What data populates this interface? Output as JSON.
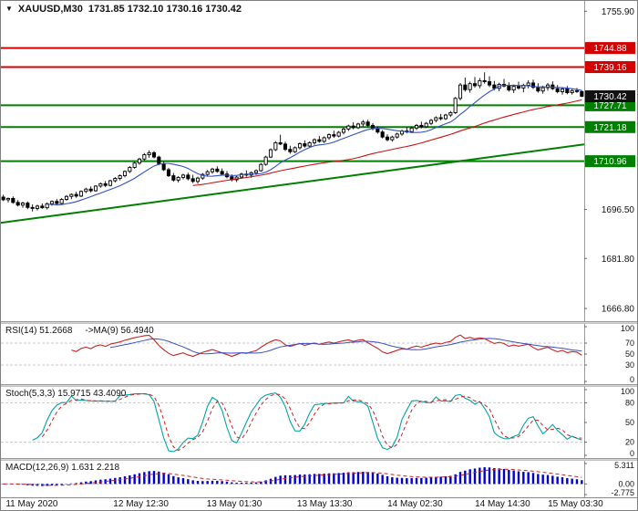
{
  "header": {
    "dropdown_icon": "▼",
    "symbol": "XAUUSD,M30",
    "ohlc": "1731.85 1732.10 1730.16 1730.42"
  },
  "chart_data": [
    {
      "type": "candlestick",
      "panel": "main",
      "symbol": "XAUUSD",
      "timeframe": "M30",
      "y_range": [
        1663,
        1759
      ],
      "y_ticks": [
        "1755.90",
        "1696.50",
        "1681.80",
        "1666.80"
      ],
      "levels": [
        {
          "price": 1744.88,
          "label": "1744.88",
          "color": "#d40000",
          "line": true,
          "role": "resistance-line"
        },
        {
          "price": 1739.16,
          "label": "1739.16",
          "color": "#d40000",
          "line": true,
          "role": "resistance-line"
        },
        {
          "price": 1727.71,
          "label": "1727.71",
          "color": "#008000",
          "line": true,
          "role": "support-line"
        },
        {
          "price": 1721.18,
          "label": "1721.18",
          "color": "#008000",
          "line": true,
          "role": "support-line"
        },
        {
          "price": 1710.96,
          "label": "1710.96",
          "color": "#008000",
          "line": true,
          "role": "support-line"
        },
        {
          "price": 1730.42,
          "label": "1730.42",
          "color": "#111111",
          "line": false,
          "role": "current-price"
        }
      ],
      "trendline": {
        "from_price": 1692.5,
        "to_price": 1716.0,
        "color": "#008000"
      },
      "ma_periods": {
        "fast": 10,
        "slow": 40
      },
      "ma_colors": {
        "fast": "#3050c8",
        "slow": "#cc1111"
      },
      "x_labels": [
        {
          "text": "11 May 2020",
          "pos": 0.053
        },
        {
          "text": "12 May 12:30",
          "pos": 0.24
        },
        {
          "text": "13 May 01:30",
          "pos": 0.4
        },
        {
          "text": "13 May 13:30",
          "pos": 0.555
        },
        {
          "text": "14 May 02:30",
          "pos": 0.71
        },
        {
          "text": "14 May 14:30",
          "pos": 0.86
        },
        {
          "text": "15 May 03:30",
          "pos": 0.985
        }
      ],
      "candles": [
        [
          1700.2,
          1700.9,
          1699.0,
          1699.4
        ],
        [
          1699.4,
          1700.1,
          1698.6,
          1699.8
        ],
        [
          1699.8,
          1700.4,
          1698.2,
          1698.6
        ],
        [
          1698.6,
          1699.3,
          1697.4,
          1697.8
        ],
        [
          1697.8,
          1698.8,
          1697.0,
          1698.4
        ],
        [
          1698.4,
          1698.9,
          1696.6,
          1697.1
        ],
        [
          1697.1,
          1698.0,
          1695.9,
          1696.8
        ],
        [
          1696.8,
          1697.9,
          1696.2,
          1697.5
        ],
        [
          1697.5,
          1698.3,
          1696.7,
          1697.0
        ],
        [
          1697.0,
          1698.6,
          1696.5,
          1698.2
        ],
        [
          1698.2,
          1699.2,
          1697.6,
          1698.9
        ],
        [
          1698.9,
          1699.6,
          1697.8,
          1698.3
        ],
        [
          1698.3,
          1699.9,
          1698.0,
          1699.5
        ],
        [
          1699.5,
          1700.8,
          1699.1,
          1700.4
        ],
        [
          1700.4,
          1701.3,
          1699.6,
          1701.0
        ],
        [
          1701.0,
          1701.8,
          1700.0,
          1700.5
        ],
        [
          1700.5,
          1702.2,
          1700.2,
          1701.9
        ],
        [
          1701.9,
          1703.0,
          1701.4,
          1702.6
        ],
        [
          1702.6,
          1703.4,
          1701.6,
          1702.1
        ],
        [
          1702.1,
          1703.8,
          1701.8,
          1703.5
        ],
        [
          1703.5,
          1704.6,
          1703.0,
          1704.2
        ],
        [
          1704.2,
          1705.0,
          1703.2,
          1703.7
        ],
        [
          1703.7,
          1705.4,
          1703.4,
          1705.1
        ],
        [
          1705.1,
          1706.2,
          1704.6,
          1705.8
        ],
        [
          1705.8,
          1707.0,
          1705.2,
          1706.6
        ],
        [
          1706.6,
          1708.2,
          1706.1,
          1707.9
        ],
        [
          1707.9,
          1709.5,
          1707.4,
          1709.1
        ],
        [
          1709.1,
          1710.8,
          1708.7,
          1710.4
        ],
        [
          1710.4,
          1712.0,
          1709.9,
          1711.6
        ],
        [
          1711.6,
          1713.4,
          1711.1,
          1712.9
        ],
        [
          1712.9,
          1714.2,
          1712.0,
          1713.5
        ],
        [
          1713.5,
          1714.0,
          1711.8,
          1712.2
        ],
        [
          1712.2,
          1712.6,
          1709.8,
          1710.2
        ],
        [
          1710.2,
          1710.9,
          1708.0,
          1708.4
        ],
        [
          1708.4,
          1709.0,
          1706.2,
          1706.6
        ],
        [
          1706.6,
          1707.4,
          1704.8,
          1705.3
        ],
        [
          1705.3,
          1706.5,
          1704.6,
          1706.1
        ],
        [
          1706.1,
          1707.2,
          1705.5,
          1706.8
        ],
        [
          1706.8,
          1707.5,
          1705.2,
          1705.7
        ],
        [
          1705.7,
          1706.9,
          1704.4,
          1704.9
        ],
        [
          1704.9,
          1706.3,
          1704.2,
          1705.9
        ],
        [
          1705.9,
          1707.4,
          1705.4,
          1707.0
        ],
        [
          1707.0,
          1708.3,
          1706.4,
          1707.8
        ],
        [
          1707.8,
          1709.0,
          1707.2,
          1708.6
        ],
        [
          1708.6,
          1709.4,
          1707.5,
          1707.9
        ],
        [
          1707.9,
          1708.8,
          1706.6,
          1707.1
        ],
        [
          1707.1,
          1708.0,
          1705.8,
          1706.3
        ],
        [
          1706.3,
          1707.0,
          1704.9,
          1705.4
        ],
        [
          1705.4,
          1706.6,
          1704.7,
          1706.2
        ],
        [
          1706.2,
          1707.5,
          1705.7,
          1707.1
        ],
        [
          1707.1,
          1708.2,
          1706.3,
          1706.8
        ],
        [
          1706.8,
          1707.9,
          1706.0,
          1707.5
        ],
        [
          1707.5,
          1708.5,
          1706.8,
          1708.1
        ],
        [
          1708.1,
          1710.4,
          1707.8,
          1710.0
        ],
        [
          1710.0,
          1712.6,
          1709.6,
          1712.2
        ],
        [
          1712.2,
          1714.8,
          1711.9,
          1714.4
        ],
        [
          1714.4,
          1717.0,
          1714.0,
          1716.5
        ],
        [
          1716.5,
          1718.9,
          1715.8,
          1716.1
        ],
        [
          1716.1,
          1716.8,
          1714.0,
          1714.5
        ],
        [
          1714.5,
          1715.6,
          1713.2,
          1713.8
        ],
        [
          1713.8,
          1715.4,
          1713.4,
          1715.0
        ],
        [
          1715.0,
          1716.6,
          1714.5,
          1716.2
        ],
        [
          1716.2,
          1717.2,
          1715.0,
          1715.5
        ],
        [
          1715.5,
          1716.9,
          1714.9,
          1716.5
        ],
        [
          1716.5,
          1717.8,
          1715.9,
          1717.4
        ],
        [
          1717.4,
          1718.5,
          1716.5,
          1716.9
        ],
        [
          1716.9,
          1718.4,
          1716.4,
          1718.0
        ],
        [
          1718.0,
          1719.3,
          1717.4,
          1718.9
        ],
        [
          1718.9,
          1720.1,
          1718.0,
          1718.5
        ],
        [
          1718.5,
          1720.0,
          1718.1,
          1719.6
        ],
        [
          1719.6,
          1721.0,
          1719.0,
          1720.6
        ],
        [
          1720.6,
          1721.9,
          1720.0,
          1721.5
        ],
        [
          1721.5,
          1722.6,
          1720.5,
          1721.0
        ],
        [
          1721.0,
          1722.5,
          1720.6,
          1722.1
        ],
        [
          1722.1,
          1723.3,
          1721.3,
          1722.7
        ],
        [
          1722.7,
          1723.4,
          1721.2,
          1721.7
        ],
        [
          1721.7,
          1722.4,
          1720.2,
          1720.7
        ],
        [
          1720.7,
          1721.4,
          1719.2,
          1719.7
        ],
        [
          1719.7,
          1720.3,
          1717.8,
          1718.2
        ],
        [
          1718.2,
          1719.0,
          1716.9,
          1717.4
        ],
        [
          1717.4,
          1718.6,
          1716.8,
          1718.2
        ],
        [
          1718.2,
          1719.5,
          1717.7,
          1719.1
        ],
        [
          1719.1,
          1720.4,
          1718.6,
          1720.0
        ],
        [
          1720.0,
          1721.2,
          1719.3,
          1719.8
        ],
        [
          1719.8,
          1721.3,
          1719.4,
          1720.9
        ],
        [
          1720.9,
          1722.1,
          1720.3,
          1721.7
        ],
        [
          1721.7,
          1722.8,
          1720.8,
          1721.3
        ],
        [
          1721.3,
          1722.7,
          1720.9,
          1722.3
        ],
        [
          1722.3,
          1723.6,
          1721.8,
          1723.2
        ],
        [
          1723.2,
          1724.4,
          1722.6,
          1724.0
        ],
        [
          1724.0,
          1725.1,
          1723.2,
          1723.7
        ],
        [
          1723.7,
          1725.2,
          1723.3,
          1724.8
        ],
        [
          1724.8,
          1726.0,
          1724.2,
          1725.5
        ],
        [
          1725.5,
          1730.2,
          1725.1,
          1729.8
        ],
        [
          1729.8,
          1734.4,
          1729.2,
          1733.8
        ],
        [
          1733.8,
          1736.0,
          1731.8,
          1732.4
        ],
        [
          1732.4,
          1734.8,
          1731.5,
          1734.2
        ],
        [
          1734.2,
          1736.2,
          1733.0,
          1733.6
        ],
        [
          1733.6,
          1735.9,
          1732.8,
          1735.1
        ],
        [
          1735.1,
          1737.6,
          1734.2,
          1734.8
        ],
        [
          1734.8,
          1736.4,
          1733.2,
          1733.8
        ],
        [
          1733.8,
          1735.0,
          1732.2,
          1732.8
        ],
        [
          1732.8,
          1734.5,
          1731.9,
          1734.0
        ],
        [
          1734.0,
          1735.6,
          1733.1,
          1733.5
        ],
        [
          1733.5,
          1734.6,
          1731.8,
          1732.3
        ],
        [
          1732.3,
          1733.9,
          1731.4,
          1733.4
        ],
        [
          1733.4,
          1734.8,
          1732.4,
          1732.9
        ],
        [
          1732.9,
          1734.2,
          1731.6,
          1733.7
        ],
        [
          1733.7,
          1735.2,
          1732.8,
          1734.4
        ],
        [
          1734.4,
          1735.4,
          1732.6,
          1733.1
        ],
        [
          1733.1,
          1734.3,
          1731.5,
          1732.0
        ],
        [
          1732.0,
          1733.6,
          1731.2,
          1733.0
        ],
        [
          1733.0,
          1734.4,
          1732.1,
          1733.8
        ],
        [
          1733.8,
          1734.9,
          1732.3,
          1732.7
        ],
        [
          1732.7,
          1733.8,
          1731.3,
          1731.8
        ],
        [
          1731.8,
          1733.2,
          1730.9,
          1732.6
        ],
        [
          1732.6,
          1733.5,
          1731.0,
          1731.5
        ],
        [
          1731.5,
          1732.6,
          1730.9,
          1732.1
        ],
        [
          1732.1,
          1732.9,
          1731.4,
          1731.85
        ],
        [
          1731.85,
          1732.1,
          1730.16,
          1730.42
        ]
      ]
    },
    {
      "type": "line",
      "panel": "rsi",
      "label": "RSI(14) 51.2668",
      "label2": "->MA(9) 56.4940",
      "period": 14,
      "ma_period": 9,
      "range": [
        0,
        100
      ],
      "y_ticks": [
        "100",
        "70",
        "50",
        "30",
        "0"
      ],
      "level_lines": [
        70,
        30
      ],
      "colors": {
        "main": "#cc2222",
        "ma": "#3a4ec4"
      }
    },
    {
      "type": "line",
      "panel": "stoch",
      "label": "Stoch(5,3,3) 15.9715 43.4090",
      "k_period": 5,
      "slowing": 3,
      "d_period": 3,
      "range": [
        0,
        100
      ],
      "y_ticks": [
        "100",
        "80",
        "50",
        "20",
        "0"
      ],
      "level_lines": [
        80,
        20
      ],
      "colors": {
        "k": "#00a5a5",
        "d": "#cc2222"
      }
    },
    {
      "type": "bar",
      "panel": "macd",
      "label": "MACD(12,26,9) 1.631 2.218",
      "fast": 12,
      "slow": 26,
      "signal": 9,
      "range": [
        -2.775,
        5.311
      ],
      "y_ticks": [
        "5.311",
        "0.00",
        "-2.775"
      ],
      "level_lines": [
        0
      ],
      "colors": {
        "hist": "#0000cc",
        "signal": "#cc2222"
      }
    }
  ]
}
